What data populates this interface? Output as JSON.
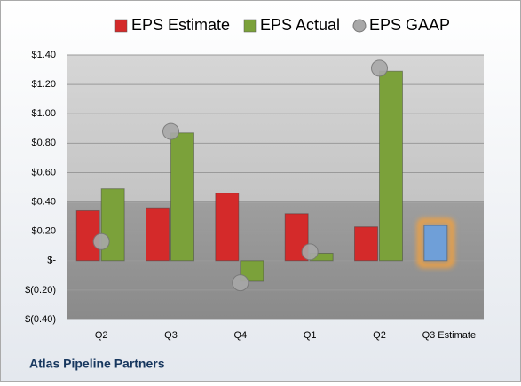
{
  "chart_data": {
    "type": "bar",
    "title": "Atlas Pipeline Partners",
    "categories": [
      "Q2",
      "Q3",
      "Q4",
      "Q1",
      "Q2",
      "Q3 Estimate"
    ],
    "series": [
      {
        "name": "EPS Estimate",
        "color": "#d42a2a",
        "values": [
          0.34,
          0.36,
          0.46,
          0.32,
          0.23,
          0.24
        ]
      },
      {
        "name": "EPS Actual",
        "color": "#7ba13a",
        "values": [
          0.49,
          0.87,
          -0.14,
          0.05,
          1.29,
          null
        ]
      },
      {
        "name": "EPS GAAP",
        "color": "#a8a8a8",
        "values": [
          0.13,
          0.88,
          -0.15,
          0.06,
          1.31,
          null
        ],
        "marker": "circle"
      }
    ],
    "highlight": {
      "index": 5,
      "color": "#6f9fd8",
      "glow": "#f0a040"
    },
    "ylim": [
      -0.4,
      1.4
    ],
    "yticks": [
      {
        "value": -0.4,
        "label": "$(0.40)"
      },
      {
        "value": -0.2,
        "label": "$(0.20)"
      },
      {
        "value": 0,
        "label": "$-"
      },
      {
        "value": 0.2,
        "label": "$0.20"
      },
      {
        "value": 0.4,
        "label": "$0.40"
      },
      {
        "value": 0.6,
        "label": "$0.60"
      },
      {
        "value": 0.8,
        "label": "$0.80"
      },
      {
        "value": 1.0,
        "label": "$1.00"
      },
      {
        "value": 1.2,
        "label": "$1.20"
      },
      {
        "value": 1.4,
        "label": "$1.40"
      }
    ],
    "grid": true
  }
}
